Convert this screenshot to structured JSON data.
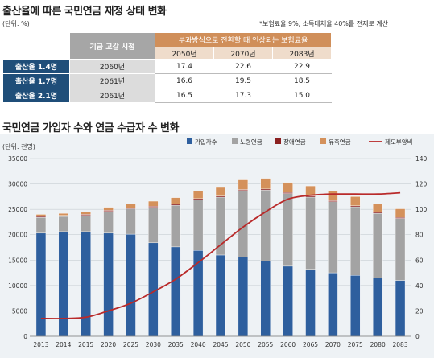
{
  "top_table": {
    "title": "출산율에 따른 국민연금 재정 상태 변화",
    "unit": "(단위: %)",
    "note": "*보험료율 9%, 소득대체율 40%를 전제로 계산",
    "col_header_left": "기금 고갈 시점",
    "col_header_right": "부과방식으로 전환할 때 인상되는 보험료율",
    "years": [
      "2050년",
      "2070년",
      "2083년"
    ],
    "rows": [
      {
        "label": "출산율 1.4명",
        "depletion": "2060년",
        "values": [
          "17.4",
          "22.6",
          "22.9"
        ]
      },
      {
        "label": "출산율 1.7명",
        "depletion": "2061년",
        "values": [
          "16.6",
          "19.5",
          "18.5"
        ]
      },
      {
        "label": "출산율 2.1명",
        "depletion": "2061년",
        "values": [
          "16.5",
          "17.3",
          "15.0"
        ]
      }
    ]
  },
  "chart_title": "국민연금 가입자 수와 연금 수급자 수 변화",
  "chart_unit": "(단위: 천명)",
  "colors": {
    "subscribers": "#2e5f9e",
    "old_age": "#a3a3a3",
    "disability": "#8b2020",
    "survivor": "#d4915b",
    "dependency": "#b92a2a",
    "chart_bg": "#eef2f5"
  },
  "chart_data": {
    "type": "bar",
    "stacked": true,
    "categories": [
      "2013",
      "2014",
      "2015",
      "2020",
      "2025",
      "2030",
      "2035",
      "2040",
      "2045",
      "2050",
      "2055",
      "2060",
      "2065",
      "2070",
      "2075",
      "2080",
      "2083"
    ],
    "series": [
      {
        "name": "가입자수",
        "values": [
          20300,
          20600,
          20600,
          20300,
          20100,
          18400,
          17600,
          16900,
          16000,
          15600,
          14800,
          13800,
          13200,
          12500,
          12000,
          11500,
          11000
        ]
      },
      {
        "name": "노령연금",
        "values": [
          3100,
          3000,
          3200,
          4300,
          5000,
          7000,
          8200,
          10000,
          11400,
          13100,
          14000,
          14300,
          14200,
          14000,
          13500,
          12700,
          12200
        ]
      },
      {
        "name": "장애연금",
        "values": [
          200,
          200,
          200,
          200,
          200,
          200,
          200,
          200,
          200,
          200,
          200,
          200,
          200,
          200,
          200,
          200,
          200
        ]
      },
      {
        "name": "유족연금",
        "values": [
          400,
          400,
          500,
          600,
          800,
          1000,
          1300,
          1500,
          1700,
          1900,
          2100,
          2000,
          2000,
          1900,
          1800,
          1700,
          1700
        ]
      }
    ],
    "line_series": {
      "name": "제도부양비",
      "axis": "right",
      "values": [
        14,
        14,
        15,
        20,
        26,
        35,
        45,
        58,
        72,
        86,
        98,
        108,
        111,
        112,
        112,
        112,
        113
      ]
    },
    "ylim_left": [
      0,
      35000
    ],
    "ylim_right": [
      0,
      140
    ],
    "yticks_left": [
      "0",
      "5000",
      "10000",
      "15000",
      "20000",
      "25000",
      "30000",
      "35000"
    ],
    "yticks_right": [
      "0",
      "20",
      "40",
      "60",
      "80",
      "100",
      "120",
      "140"
    ],
    "grid": true,
    "legend_position": "top-right"
  }
}
